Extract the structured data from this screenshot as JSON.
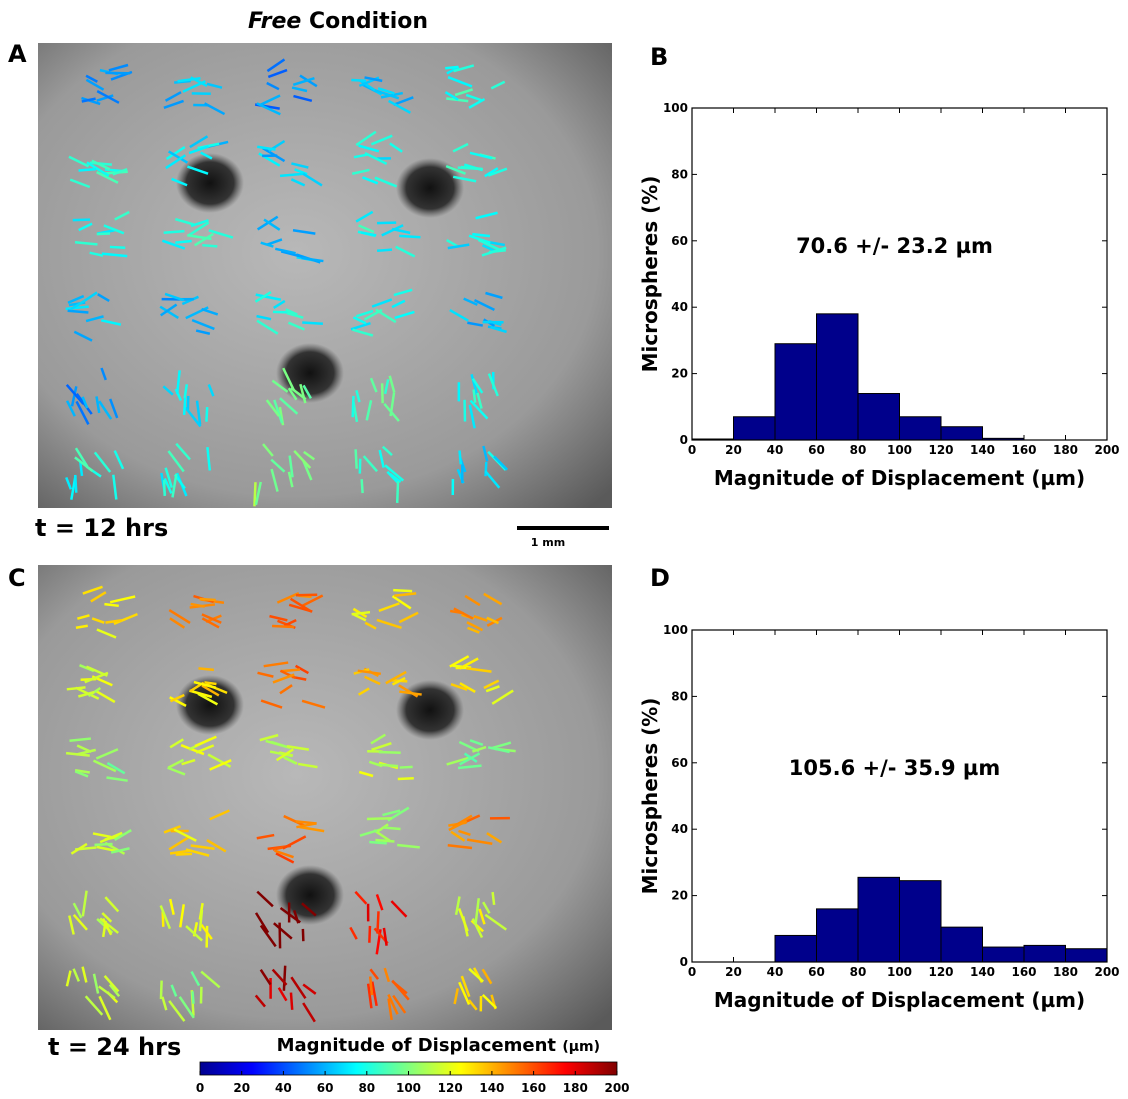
{
  "header": {
    "title_italic": "Free",
    "title_rest": "Condition"
  },
  "panels": [
    {
      "letter": "A",
      "time": "t = 12 hrs",
      "scale_bar": "1 mm"
    },
    {
      "letter": "C",
      "time": "t = 24 hrs"
    }
  ],
  "colorbar": {
    "label": "Magnitude of Displacement",
    "unit": "(µm)",
    "lim": [
      0,
      200
    ],
    "ticks": [
      0,
      20,
      40,
      60,
      80,
      100,
      120,
      140,
      160,
      180,
      200
    ]
  },
  "chart_data": [
    {
      "type": "histogram",
      "panel": "B",
      "annotation": "70.6 +/- 23.2 µm",
      "xlabel": "Magnitude of Displacement (µm)",
      "ylabel": "Microspheres (%)",
      "bins": [
        0,
        20,
        40,
        60,
        80,
        100,
        120,
        140,
        160,
        180,
        200
      ],
      "values": [
        0.3,
        7,
        29,
        38,
        14,
        7,
        4,
        0.5,
        0,
        0
      ],
      "color": "#00008b",
      "xlim": [
        0,
        200
      ],
      "ylim": [
        0,
        100
      ],
      "xticks": [
        0,
        20,
        40,
        60,
        80,
        100,
        120,
        140,
        160,
        180,
        200
      ],
      "yticks": [
        0,
        20,
        40,
        60,
        80,
        100
      ]
    },
    {
      "type": "histogram",
      "panel": "D",
      "annotation": "105.6 +/- 35.9 µm",
      "xlabel": "Magnitude of Displacement (µm)",
      "ylabel": "Microspheres (%)",
      "bins": [
        0,
        20,
        40,
        60,
        80,
        100,
        120,
        140,
        160,
        180,
        200
      ],
      "values": [
        0,
        0,
        8,
        16,
        25.5,
        24.5,
        10.5,
        4.5,
        5,
        4
      ],
      "color": "#00008b",
      "xlim": [
        0,
        200
      ],
      "ylim": [
        0,
        100
      ],
      "xticks": [
        0,
        20,
        40,
        60,
        80,
        100,
        120,
        140,
        160,
        180,
        200
      ],
      "yticks": [
        0,
        20,
        40,
        60,
        80,
        100
      ]
    }
  ]
}
